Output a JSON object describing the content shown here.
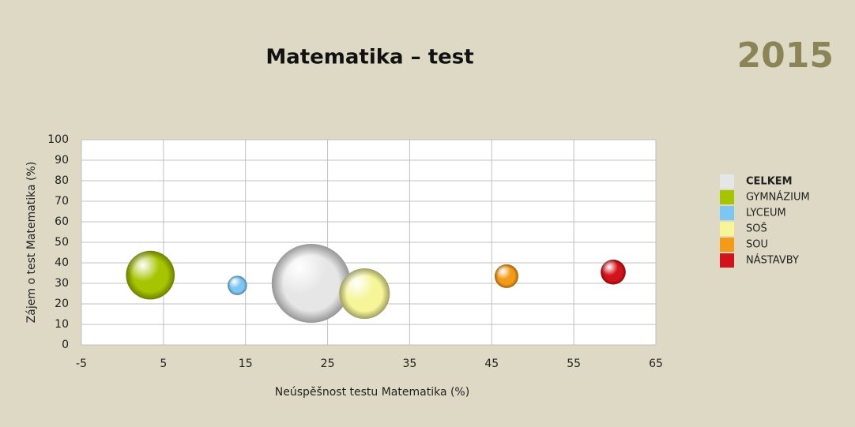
{
  "chart_data": {
    "type": "bubble",
    "title": "Matematika – test",
    "badge": "2015",
    "x_label": "Neúspěšnost testu Matematika (%)",
    "y_label": "Zájem o test Matematika (%)",
    "xlim": [
      -5,
      65
    ],
    "xticks": [
      -5,
      5,
      15,
      25,
      35,
      45,
      55,
      65
    ],
    "ylim": [
      0,
      100
    ],
    "yticks": [
      0,
      10,
      20,
      30,
      40,
      50,
      60,
      70,
      80,
      90,
      100
    ],
    "grid": true,
    "legend": "right",
    "series": [
      {
        "name": "CELKEM",
        "color": "#e6e6e6",
        "x": [
          23.0
        ],
        "values": [
          30
        ],
        "sizes": [
          100
        ]
      },
      {
        "name": "GYMNÁZIUM",
        "color": "#a6c400",
        "x": [
          3.4
        ],
        "values": [
          34
        ],
        "sizes": [
          38
        ]
      },
      {
        "name": "LYCEUM",
        "color": "#7cc6f2",
        "x": [
          14.0
        ],
        "values": [
          29
        ],
        "sizes": [
          6
        ]
      },
      {
        "name": "SOŠ",
        "color": "#f6f598",
        "x": [
          29.5
        ],
        "values": [
          25
        ],
        "sizes": [
          41
        ]
      },
      {
        "name": "SOU",
        "color": "#f39a17",
        "x": [
          46.8
        ],
        "values": [
          33.5
        ],
        "sizes": [
          9
        ]
      },
      {
        "name": "NÁSTAVBY",
        "color": "#d3131b",
        "x": [
          59.8
        ],
        "values": [
          35.5
        ],
        "sizes": [
          10
        ]
      }
    ]
  }
}
